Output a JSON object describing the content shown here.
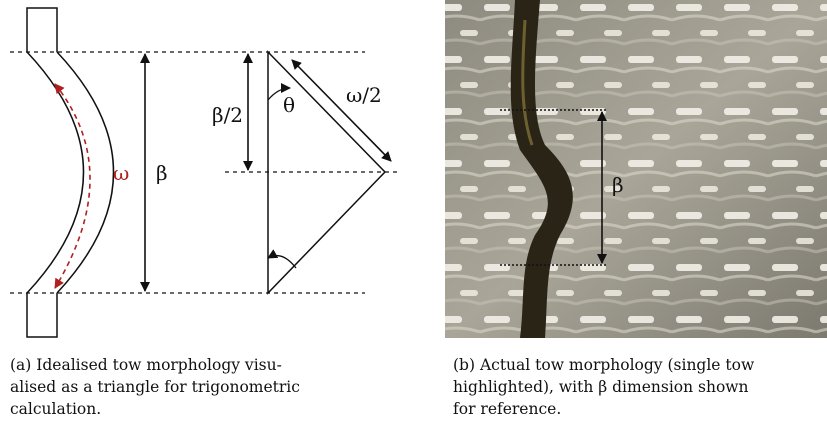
{
  "figure_a": {
    "labels": {
      "omega": "ω",
      "beta": "β",
      "half_beta": "β/2",
      "theta": "θ",
      "half_omega": "ω/2"
    },
    "caption_lines": [
      "(a) Idealised tow morphology visu-",
      "alised as a triangle for trigonometric",
      "calculation."
    ]
  },
  "figure_b": {
    "labels": {
      "beta": "β"
    },
    "caption_lines": [
      "(b) Actual tow morphology (single tow",
      "highlighted), with β dimension shown",
      "for reference."
    ]
  }
}
